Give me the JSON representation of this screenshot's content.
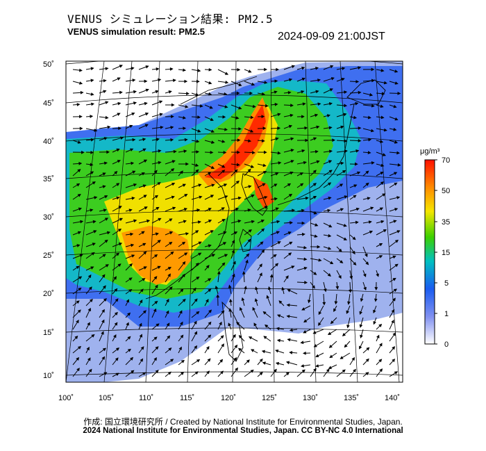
{
  "header": {
    "title_jp": "VENUS シミュレーション結果: PM2.5",
    "title_en": "VENUS simulation result: PM2.5",
    "timestamp": "2024-09-09 21:00JST"
  },
  "map": {
    "lat_labels": [
      "50˚",
      "45˚",
      "40˚",
      "35˚",
      "30˚",
      "25˚",
      "20˚",
      "15˚",
      "10˚"
    ],
    "lon_labels": [
      "100˚",
      "105˚",
      "110˚",
      "115˚",
      "120˚",
      "125˚",
      "130˚",
      "135˚",
      "140˚"
    ],
    "lat_values": [
      50,
      45,
      40,
      35,
      30,
      25,
      20,
      15,
      10
    ],
    "lon_values": [
      100,
      105,
      110,
      115,
      120,
      125,
      130,
      135,
      140
    ]
  },
  "colorbar": {
    "unit": "μg/m³",
    "ticks": [
      "70",
      "50",
      "35",
      "15",
      "5",
      "1",
      "0"
    ],
    "stops": [
      "#ff2000",
      "#ff8c00",
      "#f0e000",
      "#3cd000",
      "#00b4c8",
      "#1a60f0",
      "#c8d0f8",
      "#ffffff"
    ]
  },
  "footer": {
    "credit_line": "作成: 国立環境研究所 / Created by National Institute for Environmental Studies, Japan.",
    "copyright_line": "2024 National Institute for Environmental Studies, Japan. CC BY-NC 4.0 International"
  }
}
